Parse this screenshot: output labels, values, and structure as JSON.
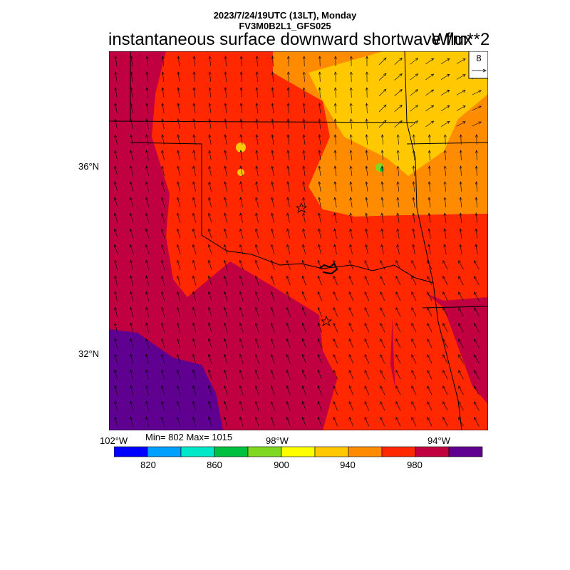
{
  "header": {
    "line1": "2023/7/24/19UTC (13LT), Monday",
    "line2": "FV3M0B2L1_GFS025"
  },
  "title": "instantaneous surface downward shortwave flux",
  "units": "W/m**2",
  "ref_vector_label": "8",
  "axes": {
    "lat_labels": [
      "36°N",
      "32°N"
    ],
    "lon_labels": [
      "102°W",
      "98°W",
      "94°W"
    ]
  },
  "minmax": "Min= 802 Max= 1015",
  "colorbar": {
    "colors": [
      "#0000ff",
      "#00a0ff",
      "#00e8c8",
      "#00c040",
      "#80d820",
      "#ffff00",
      "#ffc800",
      "#ff8c00",
      "#ff2800",
      "#c00040",
      "#600090"
    ],
    "tick_labels": [
      "820",
      "860",
      "900",
      "940",
      "980"
    ]
  },
  "map_colors": {
    "c940_960": "#ff8c00",
    "c960_980": "#ff2800",
    "c980_1000": "#c00040",
    "c1000_plus": "#600090",
    "c920_940": "#ffc800"
  }
}
